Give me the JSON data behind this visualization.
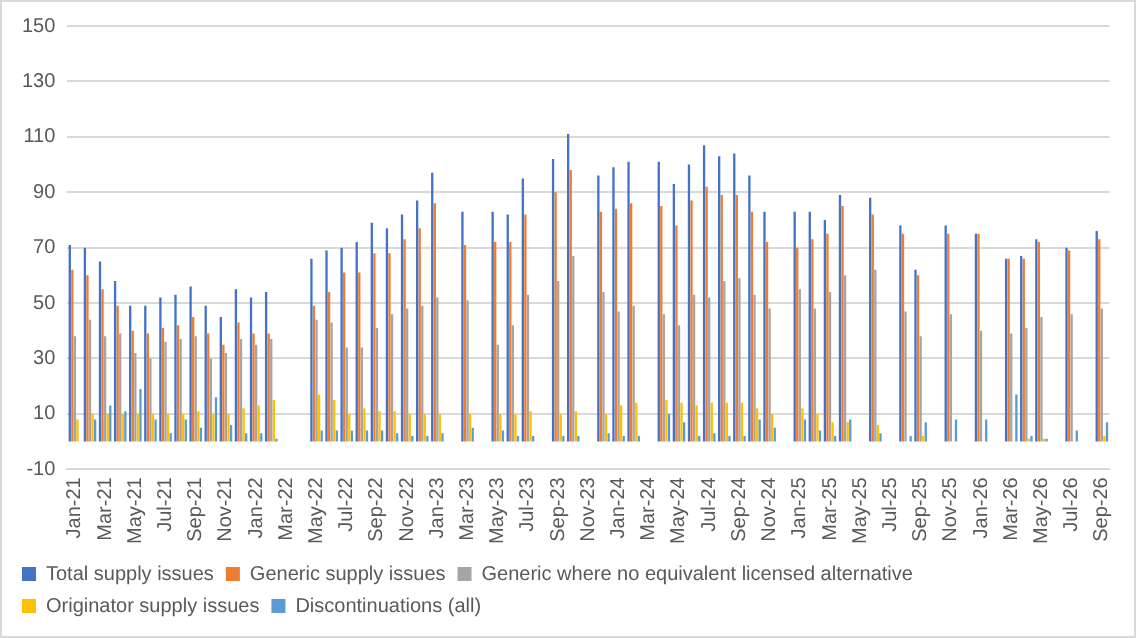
{
  "chart_data": {
    "type": "bar",
    "categories": [
      "Jan-21",
      null,
      "Mar-21",
      null,
      "May-21",
      null,
      "Jul-21",
      null,
      "Sep-21",
      null,
      "Nov-21",
      null,
      "Jan-22",
      null,
      "Mar-22",
      null,
      "May-22",
      null,
      "Jul-22",
      null,
      "Sep-22",
      null,
      "Nov-22",
      null,
      "Jan-23",
      null,
      "Mar-23",
      null,
      "May-23",
      null,
      "Jul-23",
      null,
      "Sep-23",
      null,
      "Nov-23",
      null,
      "Jan-24",
      null,
      "Mar-24",
      null,
      "May-24",
      null,
      "Jul-24",
      null,
      "Sep-24",
      null,
      "Nov-24",
      null,
      "Jan-25",
      null,
      "Mar-25",
      null,
      "May-25",
      null,
      "Jul-25",
      null,
      "Sep-25",
      null,
      "Nov-25",
      null,
      "Jan-26",
      null,
      "Mar-26",
      null,
      "May-26",
      null,
      "Jul-26",
      null,
      "Sep-26"
    ],
    "series": [
      {
        "name": "Total supply issues",
        "color": "#4472c4",
        "values": [
          71,
          70,
          65,
          58,
          49,
          49,
          52,
          53,
          56,
          49,
          45,
          55,
          52,
          54,
          null,
          null,
          66,
          69,
          70,
          72,
          79,
          77,
          82,
          87,
          97,
          null,
          83,
          null,
          83,
          82,
          95,
          null,
          102,
          111,
          null,
          96,
          99,
          101,
          null,
          101,
          93,
          100,
          107,
          103,
          104,
          96,
          83,
          null,
          83,
          83,
          80,
          89,
          null,
          88,
          null,
          78,
          62,
          null,
          78,
          null,
          75,
          null,
          66,
          67,
          73,
          null,
          70,
          null,
          76
        ]
      },
      {
        "name": "Generic supply issues",
        "color": "#ed7d31",
        "values": [
          62,
          60,
          55,
          49,
          40,
          39,
          41,
          42,
          45,
          39,
          35,
          43,
          39,
          39,
          null,
          null,
          49,
          54,
          61,
          61,
          68,
          68,
          73,
          77,
          86,
          null,
          71,
          null,
          72,
          72,
          82,
          null,
          90,
          98,
          null,
          83,
          84,
          86,
          null,
          85,
          78,
          87,
          92,
          89,
          89,
          83,
          72,
          null,
          70,
          73,
          75,
          85,
          null,
          82,
          null,
          75,
          60,
          null,
          75,
          null,
          75,
          null,
          66,
          66,
          72,
          null,
          69,
          null,
          73
        ]
      },
      {
        "name": "Generic where no equivalent licensed alternative",
        "color": "#a5a5a5",
        "values": [
          38,
          44,
          38,
          39,
          32,
          30,
          36,
          37,
          38,
          30,
          32,
          37,
          35,
          37,
          null,
          null,
          44,
          43,
          34,
          34,
          41,
          46,
          48,
          49,
          52,
          null,
          51,
          null,
          35,
          42,
          53,
          null,
          58,
          67,
          null,
          54,
          47,
          49,
          null,
          46,
          42,
          53,
          52,
          58,
          59,
          53,
          48,
          null,
          55,
          48,
          54,
          60,
          null,
          62,
          null,
          47,
          38,
          null,
          46,
          null,
          40,
          null,
          39,
          41,
          45,
          null,
          46,
          null,
          48
        ]
      },
      {
        "name": "Originator supply issues",
        "color": "#ffc000",
        "values": [
          8,
          10,
          10,
          10,
          10,
          10,
          10,
          10,
          11,
          10,
          10,
          12,
          13,
          15,
          null,
          null,
          17,
          15,
          10,
          12,
          11,
          11,
          10,
          10,
          10,
          null,
          10,
          null,
          10,
          10,
          11,
          null,
          10,
          11,
          null,
          10,
          13,
          14,
          null,
          15,
          14,
          13,
          14,
          14,
          14,
          12,
          10,
          null,
          12,
          10,
          7,
          7,
          null,
          6,
          null,
          null,
          2,
          null,
          null,
          null,
          null,
          null,
          null,
          1,
          1,
          null,
          null,
          null,
          2
        ]
      },
      {
        "name": "Discontinuations (all)",
        "color": "#5b9bd5",
        "values": [
          0,
          8,
          13,
          11,
          19,
          8,
          3,
          8,
          5,
          16,
          6,
          3,
          3,
          1,
          null,
          null,
          4,
          4,
          4,
          4,
          4,
          3,
          2,
          2,
          3,
          null,
          5,
          null,
          4,
          2,
          2,
          null,
          2,
          2,
          null,
          3,
          2,
          2,
          null,
          10,
          7,
          2,
          3,
          2,
          2,
          8,
          5,
          null,
          8,
          4,
          2,
          8,
          null,
          3,
          null,
          2,
          7,
          null,
          8,
          null,
          8,
          null,
          17,
          2,
          1,
          null,
          4,
          null,
          7
        ]
      }
    ],
    "ylim": [
      -10,
      150
    ],
    "yticks": [
      -10,
      10,
      30,
      50,
      70,
      90,
      110,
      130,
      150
    ],
    "grid": "y",
    "legend": "bottom"
  }
}
